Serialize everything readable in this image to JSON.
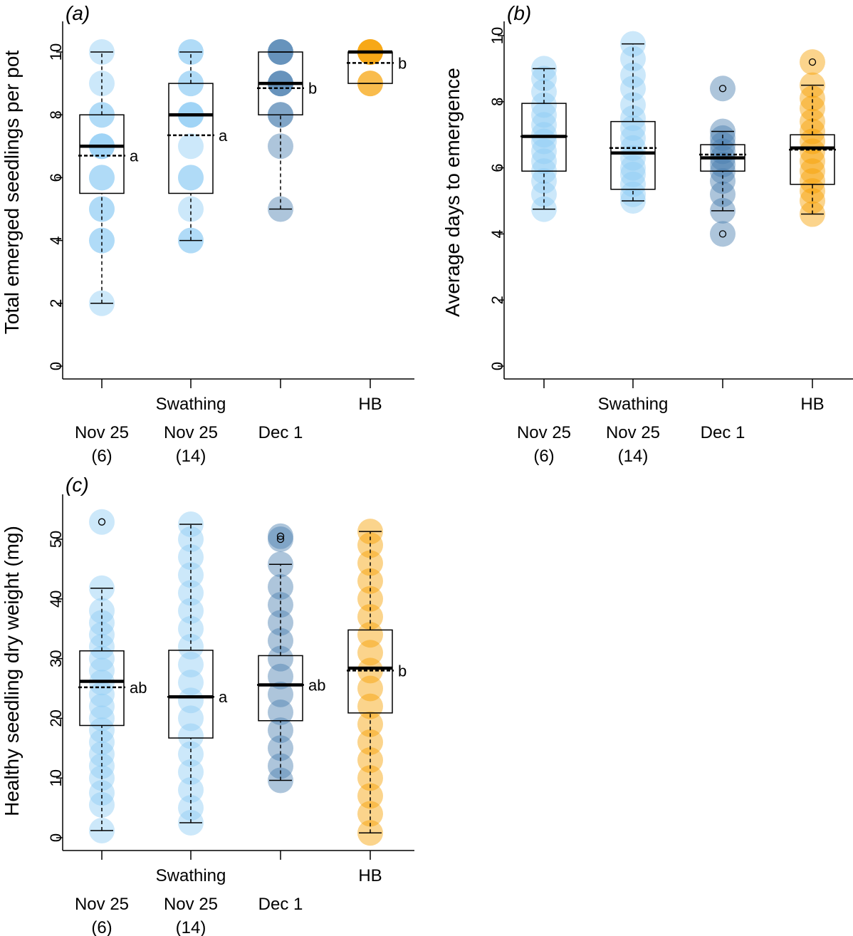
{
  "chart_data": [
    {
      "panel": "(a)",
      "type": "boxplot",
      "ylabel": "Total emerged seedlings per pot",
      "ylim": [
        0,
        10
      ],
      "yticks": [
        0,
        2,
        4,
        6,
        8,
        10
      ],
      "group_labels": [
        {
          "lines": [
            "Nov 25",
            "(6)"
          ]
        },
        {
          "lines": [
            "Swathing",
            "Nov 25",
            "(14)"
          ]
        },
        {
          "lines": [
            "Dec 1"
          ]
        },
        {
          "lines": [
            "HB"
          ]
        }
      ],
      "boxes": [
        {
          "color": "#8ecdf5",
          "q1": 5.5,
          "median": 7,
          "mean": 6.7,
          "q3": 8,
          "whisker_low": 2,
          "whisker_high": 10,
          "outliers": [],
          "letter": "a",
          "points": [
            2,
            4,
            4,
            5,
            5,
            6,
            6,
            7,
            7,
            7,
            8,
            8,
            9,
            10
          ]
        },
        {
          "color": "#8ecdf5",
          "q1": 5.5,
          "median": 8,
          "mean": 7.35,
          "q3": 9,
          "whisker_low": 4,
          "whisker_high": 10,
          "outliers": [],
          "letter": "a",
          "points": [
            4,
            4,
            5,
            6,
            6,
            7,
            8,
            8,
            8,
            9,
            9,
            10,
            10
          ]
        },
        {
          "color": "#4a7fb0",
          "q1": 8,
          "median": 9,
          "mean": 8.85,
          "q3": 10,
          "whisker_low": 5,
          "whisker_high": 10,
          "outliers": [],
          "letter": "b",
          "points": [
            5,
            7,
            8,
            8,
            9,
            9,
            9,
            10,
            10,
            10
          ]
        },
        {
          "color": "#f6a000",
          "q1": 9,
          "median": 10,
          "mean": 9.65,
          "q3": 10,
          "whisker_low": 9,
          "whisker_high": 10,
          "outliers": [],
          "letter": "b",
          "points": [
            9,
            9,
            10,
            10,
            10,
            10
          ]
        }
      ]
    },
    {
      "panel": "(b)",
      "type": "boxplot",
      "ylabel": "Average days to emergence",
      "ylim": [
        0,
        10
      ],
      "yticks": [
        0,
        2,
        4,
        6,
        8,
        10
      ],
      "group_labels": [
        {
          "lines": [
            "Nov 25",
            "(6)"
          ]
        },
        {
          "lines": [
            "Swathing",
            "Nov 25",
            "(14)"
          ]
        },
        {
          "lines": [
            "Dec 1"
          ]
        },
        {
          "lines": [
            "HB"
          ]
        }
      ],
      "boxes": [
        {
          "color": "#8ecdf5",
          "q1": 5.9,
          "median": 6.95,
          "mean": 6.95,
          "q3": 7.95,
          "whisker_low": 4.75,
          "whisker_high": 9,
          "outliers": [],
          "letter": "",
          "points": [
            4.75,
            5.2,
            5.6,
            5.9,
            6.2,
            6.5,
            6.8,
            7.0,
            7.3,
            7.6,
            7.9,
            8.3,
            8.7,
            9.0
          ]
        },
        {
          "color": "#8ecdf5",
          "q1": 5.35,
          "median": 6.45,
          "mean": 6.6,
          "q3": 7.4,
          "whisker_low": 5.0,
          "whisker_high": 9.75,
          "outliers": [],
          "letter": "",
          "points": [
            5.0,
            5.2,
            5.5,
            5.8,
            6.0,
            6.3,
            6.6,
            6.9,
            7.2,
            7.5,
            7.9,
            8.4,
            8.8,
            9.3,
            9.75
          ]
        },
        {
          "color": "#4a7fb0",
          "q1": 5.9,
          "median": 6.3,
          "mean": 6.4,
          "q3": 6.7,
          "whisker_low": 4.7,
          "whisker_high": 7.1,
          "outliers": [
            4.0,
            8.4
          ],
          "letter": "",
          "points": [
            4.0,
            4.7,
            5.2,
            5.6,
            5.9,
            6.1,
            6.3,
            6.5,
            6.7,
            6.9,
            7.1,
            8.4
          ]
        },
        {
          "color": "#f6a000",
          "q1": 5.5,
          "median": 6.6,
          "mean": 6.55,
          "q3": 7.0,
          "whisker_low": 4.6,
          "whisker_high": 8.5,
          "outliers": [
            9.2
          ],
          "letter": "",
          "points": [
            4.6,
            5.0,
            5.3,
            5.6,
            5.9,
            6.2,
            6.5,
            6.8,
            7.1,
            7.4,
            7.8,
            8.1,
            8.5,
            9.2
          ]
        }
      ]
    },
    {
      "panel": "(c)",
      "type": "boxplot",
      "ylabel": "Healthy seedling dry weight (mg)",
      "ylim": [
        0,
        50
      ],
      "yticks": [
        0,
        10,
        20,
        30,
        40,
        50
      ],
      "group_labels": [
        {
          "lines": [
            "Nov 25",
            "(6)"
          ]
        },
        {
          "lines": [
            "Swathing",
            "Nov 25",
            "(14)"
          ]
        },
        {
          "lines": [
            "Dec 1"
          ]
        },
        {
          "lines": [
            "HB"
          ]
        }
      ],
      "boxes": [
        {
          "color": "#8ecdf5",
          "q1": 18.8,
          "median": 26.2,
          "mean": 25.2,
          "q3": 31.3,
          "whisker_low": 1.2,
          "whisker_high": 41.8,
          "outliers": [
            52.9
          ],
          "letter": "ab",
          "points": [
            1.2,
            5.5,
            7.5,
            10,
            12,
            14,
            16,
            18,
            20,
            22,
            24,
            26,
            28,
            30,
            32,
            34,
            36,
            38,
            41.8,
            52.9
          ]
        },
        {
          "color": "#8ecdf5",
          "q1": 16.7,
          "median": 23.6,
          "mean": 23.6,
          "q3": 31.4,
          "whisker_low": 2.5,
          "whisker_high": 52.5,
          "outliers": [],
          "letter": "a",
          "points": [
            2.5,
            5,
            8,
            11,
            14,
            17,
            20,
            23,
            26,
            29,
            32,
            35,
            38,
            41,
            44,
            47,
            50,
            52.5
          ]
        },
        {
          "color": "#4a7fb0",
          "q1": 19.6,
          "median": 25.6,
          "mean": 25.6,
          "q3": 30.5,
          "whisker_low": 9.6,
          "whisker_high": 45.8,
          "outliers": [
            50.5,
            50.0
          ],
          "letter": "ab",
          "points": [
            9.6,
            12,
            15,
            18,
            21,
            24,
            27,
            30,
            33,
            36,
            39,
            42,
            45.8,
            50.0,
            50.5
          ]
        },
        {
          "color": "#f6a000",
          "q1": 20.9,
          "median": 28.4,
          "mean": 28.0,
          "q3": 34.8,
          "whisker_low": 0.8,
          "whisker_high": 51.3,
          "outliers": [],
          "letter": "b",
          "points": [
            0.8,
            4,
            7,
            10,
            13,
            16,
            19,
            22,
            25,
            28,
            31,
            34,
            37,
            40,
            43,
            46,
            49,
            51.3
          ]
        }
      ]
    }
  ]
}
